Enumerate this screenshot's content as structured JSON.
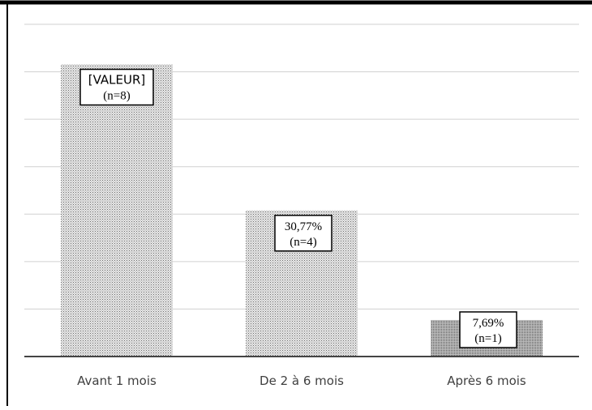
{
  "chart_data": {
    "type": "bar",
    "categories": [
      "Avant 1 mois",
      "De 2 à 6 mois",
      "Après 6 mois"
    ],
    "values": [
      61.54,
      30.77,
      7.69
    ],
    "data_labels": [
      [
        "[VALEUR]",
        "(n=8)"
      ],
      [
        "30,77%",
        "(n=4)"
      ],
      [
        "7,69%",
        "(n=1)"
      ]
    ],
    "title": "",
    "xlabel": "",
    "ylabel": "",
    "ylim": [
      0,
      70
    ],
    "grid": true,
    "legend": "none",
    "colors": {
      "bar_fill": "#c8c8c8",
      "bar_dot": "#7a7a7a",
      "grid": "#d0d0d0",
      "axis": "#444444",
      "frame": "#000000",
      "tick_text": "#404040"
    }
  }
}
